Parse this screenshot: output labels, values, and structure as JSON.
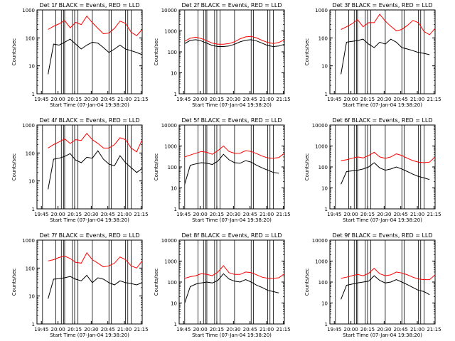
{
  "figure": {
    "ylabel": "Counts/sec",
    "xlabel": "Start Time (07-Jan-04 19:38:20)"
  },
  "colors": {
    "events": "#000000",
    "lld": "#ff0000",
    "axes": "#000000"
  },
  "chart_data": [
    {
      "type": "line",
      "title": "Det 1f BLACK = Events, RED = LLD",
      "ylabel": "Counts/sec",
      "xlabel": "Start Time (07-Jan-04 19:38:20)",
      "x_ticks": [
        "19:45",
        "20:00",
        "20:15",
        "20:30",
        "20:45",
        "21:00",
        "21:15"
      ],
      "y_ticks": [
        "1",
        "10",
        "100",
        "1000"
      ],
      "ylim": [
        1,
        1000
      ],
      "y_scale": "log",
      "x_minutes": [
        0,
        5,
        10,
        15,
        20,
        25,
        30,
        35,
        40,
        45,
        50,
        55,
        60,
        65,
        70,
        75,
        80,
        85,
        90,
        95
      ],
      "markers_minutes": [
        5,
        17,
        22,
        24,
        25,
        32,
        34,
        37,
        50,
        65,
        67,
        80,
        82,
        85
      ],
      "series": [
        {
          "name": "Events",
          "values": [
            null,
            null,
            5,
            60,
            55,
            70,
            90,
            60,
            40,
            55,
            70,
            65,
            45,
            30,
            40,
            55,
            40,
            35,
            30,
            25
          ]
        },
        {
          "name": "LLD",
          "values": [
            null,
            null,
            200,
            260,
            320,
            420,
            230,
            360,
            300,
            600,
            350,
            220,
            140,
            150,
            220,
            400,
            330,
            160,
            120,
            200
          ]
        }
      ]
    },
    {
      "type": "line",
      "title": "Det 2f BLACK = Events, RED = LLD",
      "ylabel": "Counts/sec",
      "xlabel": "Start Time (07-Jan-04 19:38:20)",
      "x_ticks": [
        "19:45",
        "20:00",
        "20:15",
        "20:30",
        "20:45",
        "21:00",
        "21:15"
      ],
      "y_ticks": [
        "1",
        "10",
        "100",
        "1000",
        "10000"
      ],
      "ylim": [
        1,
        10000
      ],
      "y_scale": "log",
      "x_minutes": [
        0,
        5,
        10,
        15,
        20,
        25,
        30,
        35,
        40,
        45,
        50,
        55,
        60,
        65,
        70,
        75,
        80,
        85,
        90,
        95
      ],
      "markers_minutes": [
        5,
        17,
        22,
        24,
        25,
        32,
        34,
        37,
        50,
        65,
        67,
        80,
        82,
        85
      ],
      "series": [
        {
          "name": "Events",
          "values": [
            null,
            250,
            350,
            380,
            330,
            260,
            200,
            180,
            180,
            190,
            230,
            300,
            360,
            380,
            330,
            260,
            200,
            180,
            190,
            230
          ]
        },
        {
          "name": "LLD",
          "values": [
            null,
            320,
            450,
            500,
            430,
            340,
            260,
            230,
            230,
            250,
            300,
            420,
            520,
            550,
            460,
            350,
            280,
            250,
            280,
            380
          ]
        }
      ]
    },
    {
      "type": "line",
      "title": "Det 3f BLACK = Events, RED = LLD",
      "ylabel": "Counts/sec",
      "xlabel": "Start Time (07-Jan-04 19:38:20)",
      "x_ticks": [
        "19:45",
        "20:00",
        "20:15",
        "20:30",
        "20:45",
        "21:00",
        "21:15"
      ],
      "y_ticks": [
        "1",
        "10",
        "100",
        "1000"
      ],
      "ylim": [
        1,
        1000
      ],
      "y_scale": "log",
      "x_minutes": [
        0,
        5,
        10,
        15,
        20,
        25,
        30,
        35,
        40,
        45,
        50,
        55,
        60,
        65,
        70,
        75,
        80,
        85,
        90,
        95
      ],
      "markers_minutes": [
        5,
        17,
        22,
        24,
        25,
        32,
        34,
        37,
        50,
        65,
        67,
        80,
        82,
        85
      ],
      "series": [
        {
          "name": "Events",
          "values": [
            null,
            null,
            5,
            70,
            75,
            80,
            90,
            60,
            45,
            70,
            60,
            90,
            70,
            45,
            40,
            35,
            30,
            28,
            25,
            null
          ]
        },
        {
          "name": "LLD",
          "values": [
            null,
            null,
            200,
            250,
            320,
            450,
            250,
            350,
            350,
            700,
            400,
            260,
            180,
            200,
            280,
            420,
            350,
            170,
            130,
            220
          ]
        }
      ]
    },
    {
      "type": "line",
      "title": "Det 4f BLACK = Events, RED = LLD",
      "ylabel": "Counts/sec",
      "xlabel": "Start Time (07-Jan-04 19:38:20)",
      "x_ticks": [
        "19:45",
        "20:00",
        "20:15",
        "20:30",
        "20:45",
        "21:00",
        "21:15"
      ],
      "y_ticks": [
        "1",
        "10",
        "100",
        "1000"
      ],
      "ylim": [
        1,
        1000
      ],
      "y_scale": "log",
      "x_minutes": [
        0,
        5,
        10,
        15,
        20,
        25,
        30,
        35,
        40,
        45,
        50,
        55,
        60,
        65,
        70,
        75,
        80,
        85,
        90,
        95
      ],
      "markers_minutes": [
        5,
        17,
        22,
        24,
        25,
        32,
        34,
        37,
        50,
        65,
        67,
        80,
        82,
        85
      ],
      "series": [
        {
          "name": "Events",
          "values": [
            null,
            null,
            5,
            60,
            65,
            75,
            95,
            55,
            45,
            70,
            65,
            120,
            60,
            40,
            35,
            80,
            45,
            30,
            20,
            28
          ]
        },
        {
          "name": "LLD",
          "values": [
            null,
            null,
            150,
            200,
            250,
            320,
            220,
            300,
            280,
            500,
            300,
            220,
            150,
            150,
            200,
            350,
            300,
            150,
            110,
            300
          ]
        }
      ]
    },
    {
      "type": "line",
      "title": "Det 5f BLACK = Events, RED = LLD",
      "ylabel": "Counts/sec",
      "xlabel": "Start Time (07-Jan-04 19:38:20)",
      "x_ticks": [
        "19:45",
        "20:00",
        "20:15",
        "20:30",
        "20:45",
        "21:00",
        "21:15"
      ],
      "y_ticks": [
        "1",
        "10",
        "100",
        "1000",
        "10000"
      ],
      "ylim": [
        1,
        10000
      ],
      "y_scale": "log",
      "x_minutes": [
        0,
        5,
        10,
        15,
        20,
        25,
        30,
        35,
        40,
        45,
        50,
        55,
        60,
        65,
        70,
        75,
        80,
        85,
        90,
        95
      ],
      "markers_minutes": [
        5,
        17,
        22,
        24,
        25,
        32,
        34,
        37,
        50,
        65,
        67,
        80,
        82,
        85
      ],
      "series": [
        {
          "name": "Events",
          "values": [
            null,
            15,
            120,
            140,
            160,
            150,
            130,
            190,
            400,
            220,
            160,
            150,
            200,
            170,
            120,
            90,
            70,
            55,
            50,
            null
          ]
        },
        {
          "name": "LLD",
          "values": [
            null,
            300,
            370,
            450,
            550,
            500,
            400,
            600,
            1000,
            550,
            450,
            450,
            600,
            550,
            430,
            330,
            270,
            260,
            280,
            450
          ]
        }
      ]
    },
    {
      "type": "line",
      "title": "Det 6f BLACK = Events, RED = LLD",
      "ylabel": "Counts/sec",
      "xlabel": "Start Time (07-Jan-04 19:38:20)",
      "x_ticks": [
        "19:45",
        "20:00",
        "20:15",
        "20:30",
        "20:45",
        "21:00",
        "21:15"
      ],
      "y_ticks": [
        "1",
        "10",
        "100",
        "1000",
        "10000"
      ],
      "ylim": [
        1,
        10000
      ],
      "y_scale": "log",
      "x_minutes": [
        0,
        5,
        10,
        15,
        20,
        25,
        30,
        35,
        40,
        45,
        50,
        55,
        60,
        65,
        70,
        75,
        80,
        85,
        90,
        95
      ],
      "markers_minutes": [
        5,
        17,
        22,
        24,
        25,
        32,
        34,
        37,
        50,
        65,
        67,
        80,
        82,
        85
      ],
      "series": [
        {
          "name": "Events",
          "values": [
            null,
            null,
            15,
            60,
            65,
            70,
            80,
            100,
            160,
            90,
            70,
            80,
            100,
            80,
            60,
            45,
            35,
            30,
            25,
            null
          ]
        },
        {
          "name": "LLD",
          "values": [
            null,
            null,
            200,
            220,
            260,
            300,
            270,
            350,
            500,
            300,
            260,
            300,
            420,
            350,
            260,
            200,
            170,
            160,
            170,
            300
          ]
        }
      ]
    },
    {
      "type": "line",
      "title": "Det 7f BLACK = Events, RED = LLD",
      "ylabel": "Counts/sec",
      "xlabel": "Start Time (07-Jan-04 19:38:20)",
      "x_ticks": [
        "19:45",
        "20:00",
        "20:15",
        "20:30",
        "20:45",
        "21:00",
        "21:15"
      ],
      "y_ticks": [
        "1",
        "10",
        "100",
        "1000"
      ],
      "ylim": [
        1,
        1000
      ],
      "y_scale": "log",
      "x_minutes": [
        0,
        5,
        10,
        15,
        20,
        25,
        30,
        35,
        40,
        45,
        50,
        55,
        60,
        65,
        70,
        75,
        80,
        85,
        90,
        95
      ],
      "markers_minutes": [
        5,
        17,
        22,
        24,
        25,
        32,
        34,
        37,
        50,
        65,
        67,
        80,
        82,
        85
      ],
      "series": [
        {
          "name": "Events",
          "values": [
            null,
            null,
            8,
            40,
            42,
            45,
            50,
            40,
            35,
            55,
            30,
            45,
            40,
            30,
            25,
            35,
            30,
            28,
            25,
            30
          ]
        },
        {
          "name": "LLD",
          "values": [
            null,
            null,
            180,
            200,
            240,
            270,
            220,
            160,
            150,
            350,
            200,
            150,
            110,
            120,
            150,
            250,
            200,
            120,
            100,
            180
          ]
        }
      ]
    },
    {
      "type": "line",
      "title": "Det 8f BLACK = Events, RED = LLD",
      "ylabel": "Counts/sec",
      "xlabel": "Start Time (07-Jan-04 19:38:20)",
      "x_ticks": [
        "19:45",
        "20:00",
        "20:15",
        "20:30",
        "20:45",
        "21:00",
        "21:15"
      ],
      "y_ticks": [
        "1",
        "10",
        "100",
        "1000",
        "10000"
      ],
      "ylim": [
        1,
        10000
      ],
      "y_scale": "log",
      "x_minutes": [
        0,
        5,
        10,
        15,
        20,
        25,
        30,
        35,
        40,
        45,
        50,
        55,
        60,
        65,
        70,
        75,
        80,
        85,
        90,
        95
      ],
      "markers_minutes": [
        5,
        17,
        22,
        24,
        25,
        32,
        34,
        37,
        50,
        65,
        67,
        80,
        82,
        85
      ],
      "series": [
        {
          "name": "Events",
          "values": [
            null,
            10,
            60,
            80,
            90,
            100,
            90,
            120,
            250,
            140,
            110,
            100,
            130,
            100,
            70,
            55,
            40,
            35,
            30,
            null
          ]
        },
        {
          "name": "LLD",
          "values": [
            null,
            150,
            180,
            200,
            250,
            230,
            200,
            300,
            600,
            280,
            230,
            230,
            300,
            280,
            220,
            170,
            150,
            150,
            160,
            250
          ]
        }
      ]
    },
    {
      "type": "line",
      "title": "Det 9f BLACK = Events, RED = LLD",
      "ylabel": "Counts/sec",
      "xlabel": "Start Time (07-Jan-04 19:38:20)",
      "x_ticks": [
        "19:45",
        "20:00",
        "20:15",
        "20:30",
        "20:45",
        "21:00",
        "21:15"
      ],
      "y_ticks": [
        "1",
        "10",
        "100",
        "1000",
        "10000"
      ],
      "ylim": [
        1,
        10000
      ],
      "y_scale": "log",
      "x_minutes": [
        0,
        5,
        10,
        15,
        20,
        25,
        30,
        35,
        40,
        45,
        50,
        55,
        60,
        65,
        70,
        75,
        80,
        85,
        90,
        95
      ],
      "markers_minutes": [
        5,
        17,
        22,
        24,
        25,
        32,
        34,
        37,
        50,
        65,
        67,
        80,
        82,
        85
      ],
      "series": [
        {
          "name": "Events",
          "values": [
            null,
            null,
            15,
            70,
            80,
            90,
            100,
            110,
            200,
            120,
            90,
            100,
            130,
            100,
            75,
            55,
            40,
            35,
            25,
            null
          ]
        },
        {
          "name": "LLD",
          "values": [
            null,
            null,
            150,
            170,
            200,
            230,
            200,
            260,
            450,
            250,
            200,
            220,
            300,
            270,
            220,
            170,
            140,
            130,
            130,
            220
          ]
        }
      ]
    }
  ]
}
